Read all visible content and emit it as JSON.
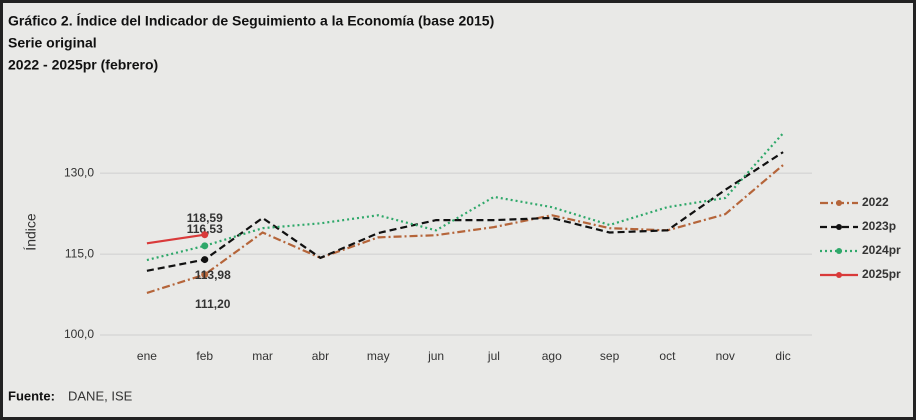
{
  "chart_data": {
    "type": "line",
    "title": "Gráfico 2. Índice del Indicador de Seguimiento a la Economía (base 2015)",
    "subtitle": "Serie original",
    "period": "2022 - 2025pr (febrero)",
    "y_label": "Índice",
    "source_label": "Fuente:",
    "source": "DANE, ISE",
    "categories": [
      "ene",
      "feb",
      "mar",
      "abr",
      "may",
      "jun",
      "jul",
      "ago",
      "sep",
      "oct",
      "nov",
      "dic"
    ],
    "ylim": [
      100,
      138
    ],
    "yticks": [
      {
        "value": 100,
        "label": "100,0"
      },
      {
        "value": 115,
        "label": "115,0"
      },
      {
        "value": 130,
        "label": "130,0"
      }
    ],
    "grid": true,
    "legend": "right",
    "series": [
      {
        "name": "2022",
        "color": "#b5653a",
        "dash": "8 3 2 3",
        "values": [
          107.8,
          111.2,
          119,
          114.3,
          118.1,
          118.5,
          120,
          122.2,
          119.8,
          119.4,
          122.4,
          131.5
        ],
        "value_labels": [
          null,
          "111,20",
          null,
          null,
          null,
          null,
          null,
          null,
          null,
          null,
          null,
          null
        ]
      },
      {
        "name": "2023p",
        "color": "#111111",
        "dash": "7 4",
        "values": [
          111.9,
          113.98,
          121.7,
          114.3,
          118.9,
          121.3,
          121.3,
          121.7,
          119,
          119.4,
          126.9,
          133.9
        ],
        "value_labels": [
          null,
          "113,98",
          null,
          null,
          null,
          null,
          null,
          null,
          null,
          null,
          null,
          null
        ]
      },
      {
        "name": "2024pr",
        "color": "#2fa86a",
        "dash": "2 3",
        "values": [
          113.9,
          116.53,
          119.8,
          120.7,
          122.2,
          119.4,
          125.6,
          123.7,
          120.4,
          123.7,
          125.4,
          137.4
        ],
        "value_labels": [
          null,
          "116,53",
          null,
          null,
          null,
          null,
          null,
          null,
          null,
          null,
          null,
          null
        ]
      },
      {
        "name": "2025pr",
        "color": "#d93a3a",
        "dash": "none",
        "values": [
          117,
          118.59,
          null,
          null,
          null,
          null,
          null,
          null,
          null,
          null,
          null,
          null
        ],
        "value_labels": [
          null,
          "118,59",
          null,
          null,
          null,
          null,
          null,
          null,
          null,
          null,
          null,
          null
        ]
      }
    ]
  }
}
